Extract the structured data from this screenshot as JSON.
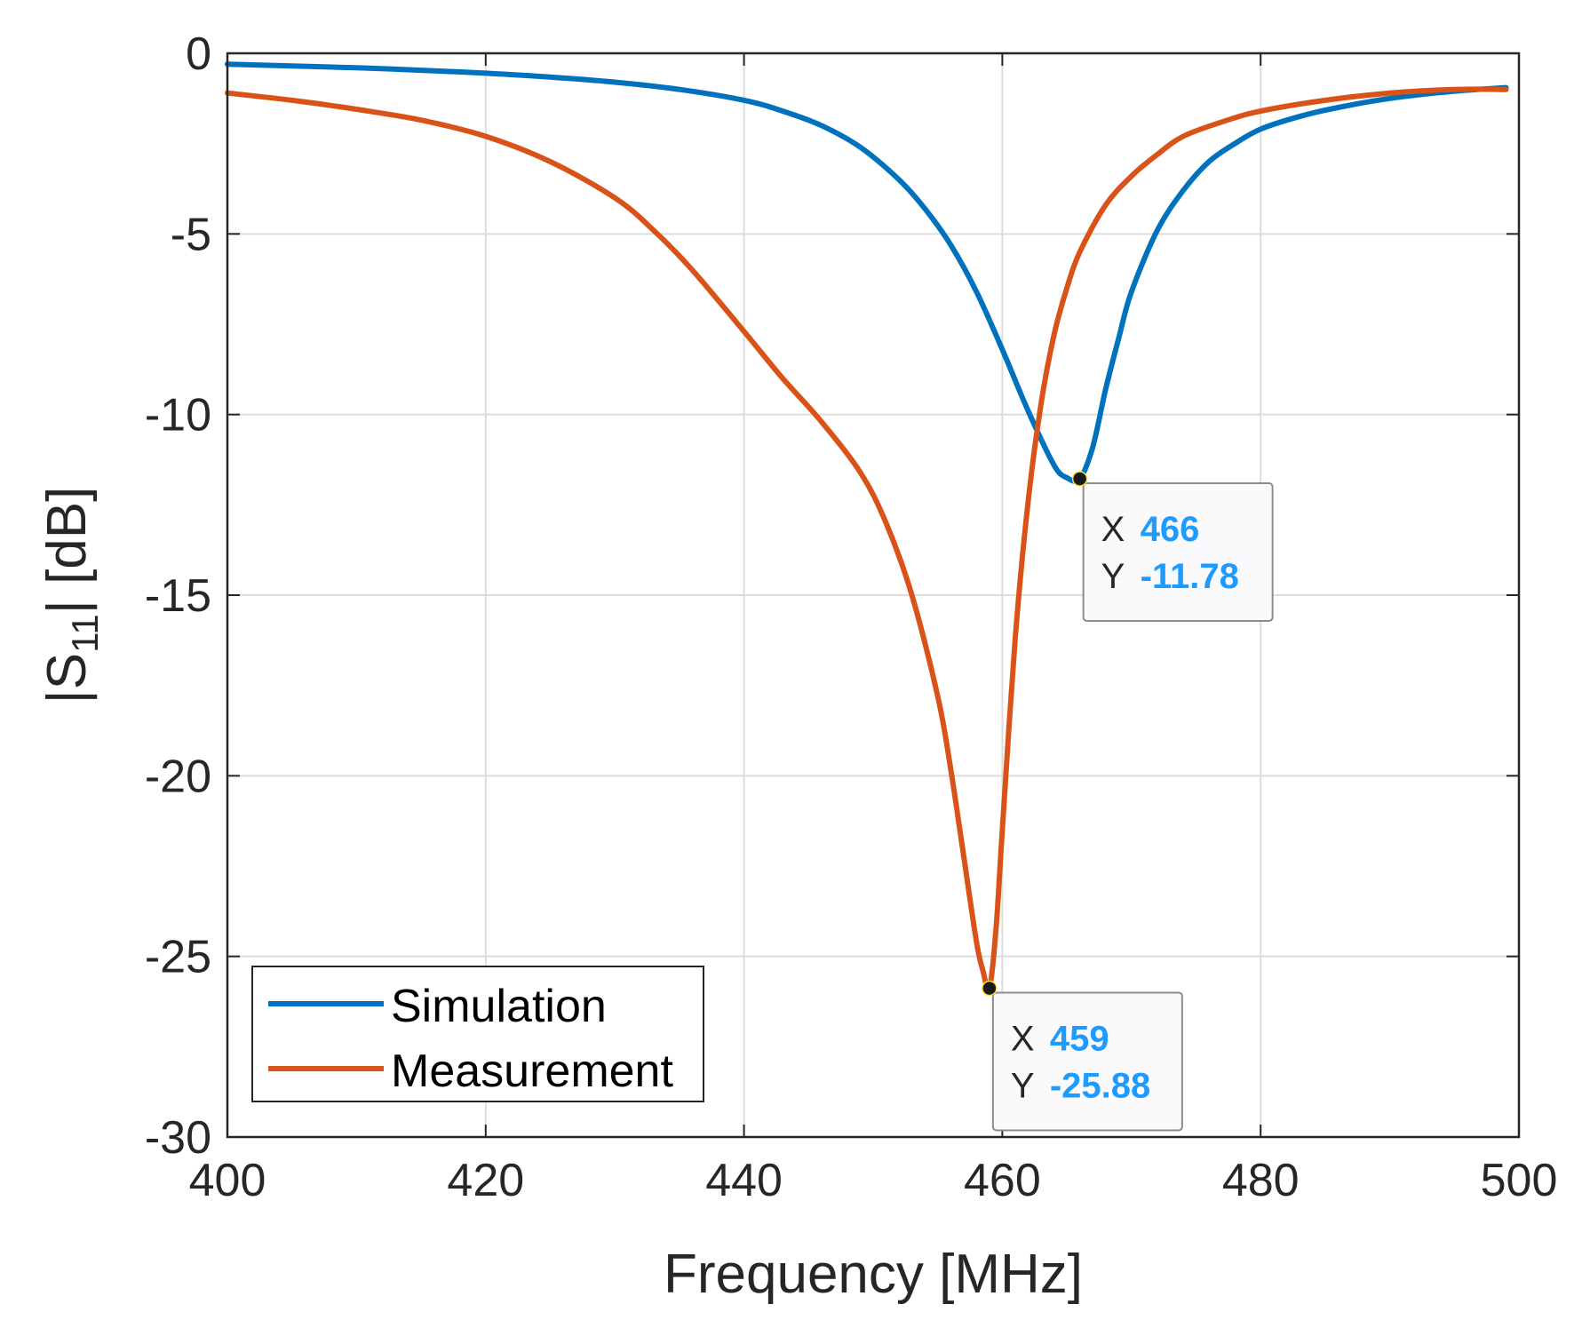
{
  "chart_data": {
    "type": "line",
    "title": "",
    "xlabel": "Frequency [MHz]",
    "ylabel": {
      "prefix": "|S",
      "sub": "11",
      "suffix": "| [dB]"
    },
    "xlim": [
      400,
      500
    ],
    "ylim": [
      -30,
      0
    ],
    "xticks": [
      400,
      420,
      440,
      460,
      480,
      500
    ],
    "yticks": [
      0,
      -5,
      -10,
      -15,
      -20,
      -25,
      -30
    ],
    "grid": true,
    "legend_position": "bottom-left",
    "series": [
      {
        "name": "Simulation",
        "color": "#0072BD",
        "x": [
          400,
          405,
          410,
          415,
          420,
          425,
          430,
          435,
          440,
          443,
          446,
          449,
          452,
          454,
          456,
          458,
          460,
          462,
          464,
          465,
          466,
          467,
          468,
          469,
          470,
          472,
          474,
          476,
          478,
          480,
          483,
          486,
          490,
          495,
          499
        ],
        "y": [
          -0.3,
          -0.35,
          -0.4,
          -0.47,
          -0.55,
          -0.66,
          -0.8,
          -1.0,
          -1.3,
          -1.6,
          -2.0,
          -2.6,
          -3.5,
          -4.3,
          -5.3,
          -6.6,
          -8.2,
          -9.9,
          -11.4,
          -11.75,
          -11.78,
          -10.9,
          -9.3,
          -7.9,
          -6.6,
          -4.9,
          -3.8,
          -3.0,
          -2.5,
          -2.1,
          -1.75,
          -1.5,
          -1.25,
          -1.05,
          -0.95
        ]
      },
      {
        "name": "Measurement",
        "color": "#D95319",
        "x": [
          400,
          405,
          410,
          415,
          420,
          425,
          430,
          433,
          436,
          440,
          443,
          446,
          449,
          451,
          453,
          455,
          456,
          457,
          458,
          458.5,
          459,
          459.5,
          460,
          461,
          462,
          463,
          464,
          465,
          466,
          468,
          470,
          472,
          474,
          477,
          480,
          485,
          490,
          495,
          499
        ],
        "y": [
          -1.1,
          -1.3,
          -1.55,
          -1.85,
          -2.3,
          -3.0,
          -4.0,
          -4.9,
          -6.0,
          -7.7,
          -9.0,
          -10.2,
          -11.6,
          -13.0,
          -15.0,
          -17.8,
          -19.8,
          -22.2,
          -24.6,
          -25.4,
          -25.88,
          -24.3,
          -21.5,
          -16.2,
          -12.4,
          -9.7,
          -7.8,
          -6.5,
          -5.5,
          -4.2,
          -3.4,
          -2.8,
          -2.3,
          -1.9,
          -1.6,
          -1.3,
          -1.1,
          -1.0,
          -1.0
        ]
      }
    ],
    "datatips": [
      {
        "x_label": "X",
        "x_value": "466",
        "y_label": "Y",
        "y_value": "-11.78",
        "x": 466,
        "y": -11.78
      },
      {
        "x_label": "X",
        "x_value": "459",
        "y_label": "Y",
        "y_value": "-25.88",
        "x": 459,
        "y": -25.88
      }
    ]
  }
}
